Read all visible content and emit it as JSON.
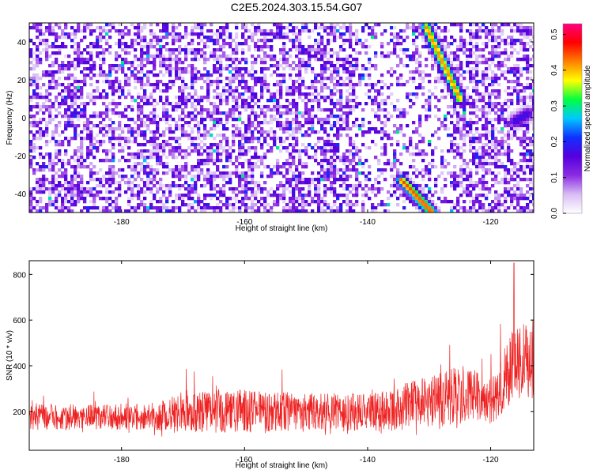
{
  "title": "C2E5.2024.303.15.54.G07",
  "chart_data": [
    {
      "type": "heatmap",
      "xlabel": "Height of straight line (km)",
      "ylabel": "Frequency (Hz)",
      "xlim": [
        -195,
        -113
      ],
      "ylim": [
        -50,
        50
      ],
      "xticks": [
        -180,
        -160,
        -140,
        -120
      ],
      "yticks": [
        40,
        20,
        0,
        -20,
        -40
      ],
      "colorbar": {
        "label": "Normalized spectral amplitude",
        "range": [
          0.0,
          0.53
        ],
        "ticks": [
          "0.0",
          "0.1",
          "0.2",
          "0.3",
          "0.4",
          "0.5"
        ],
        "tick_values": [
          0.0,
          0.1,
          0.2,
          0.3,
          0.4,
          0.5
        ]
      },
      "colors": [
        "#ffffff",
        "#d8bdf3",
        "#8c2be2",
        "#5500dd",
        "#1030ff",
        "#00c8ff",
        "#00ff40",
        "#ffff00",
        "#ff8000",
        "#ff0000",
        "#ff0080"
      ],
      "features": [
        {
          "name": "lower diagonal streak",
          "x": [
            -134.5,
            -129.5
          ],
          "y": [
            -33,
            -50
          ],
          "peak": 0.45
        },
        {
          "name": "upper diagonal streak",
          "x": [
            -130.5,
            -125
          ],
          "y": [
            48,
            10
          ],
          "peak": 0.42
        },
        {
          "name": "right edge blob",
          "x": [
            -116,
            -114
          ],
          "y": [
            -2,
            2
          ],
          "peak": 0.18
        }
      ]
    },
    {
      "type": "line",
      "color": "#ee2222",
      "xlabel": "Height of straight line (km)",
      "ylabel": "SNR (10 * v/v)",
      "xlim": [
        -195,
        -113
      ],
      "ylim": [
        30,
        860
      ],
      "xticks": [
        -180,
        -160,
        -140,
        -120
      ],
      "yticks": [
        200,
        400,
        600,
        800
      ],
      "envelope": {
        "x": [
          -195,
          -185,
          -175,
          -170,
          -160,
          -150,
          -140,
          -136,
          -130,
          -125,
          -122,
          -120,
          -118,
          -116,
          -114,
          -113
        ],
        "mean": [
          180,
          175,
          180,
          200,
          200,
          195,
          195,
          205,
          250,
          275,
          270,
          240,
          330,
          420,
          420,
          400
        ],
        "spread": [
          60,
          55,
          60,
          90,
          95,
          85,
          85,
          90,
          120,
          130,
          110,
          95,
          140,
          170,
          160,
          150
        ],
        "peak": 850
      }
    }
  ]
}
